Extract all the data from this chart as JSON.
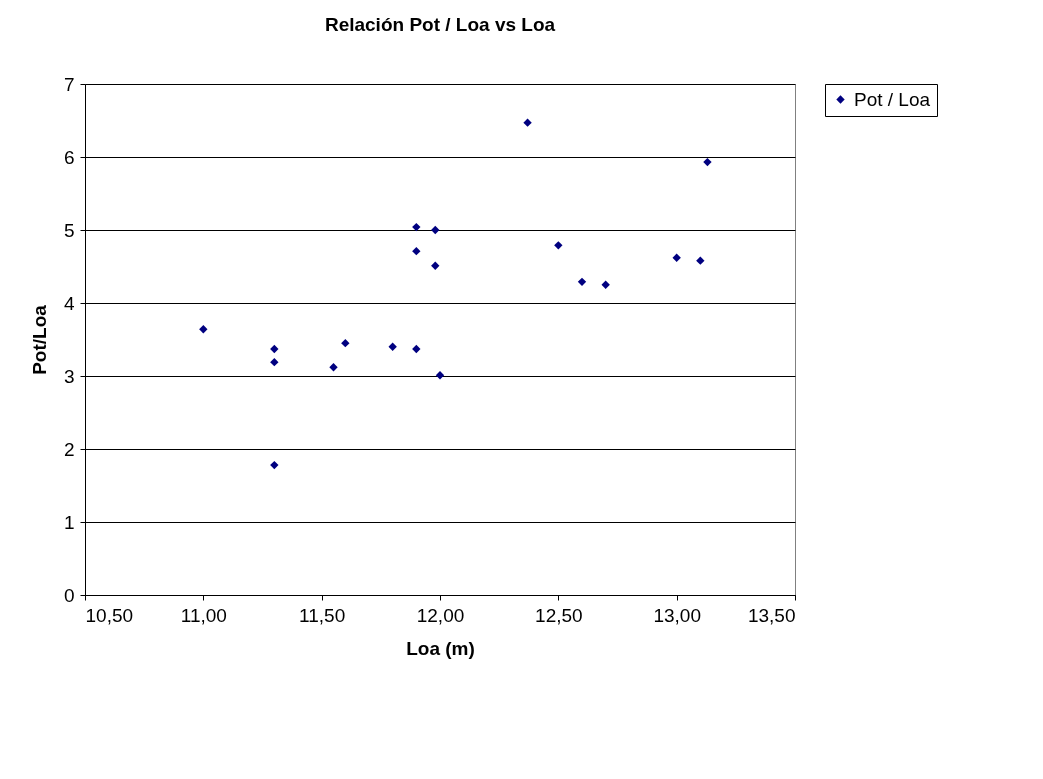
{
  "chart_data": {
    "type": "scatter",
    "title": "Relación Pot / Loa vs Loa",
    "xlabel": "Loa (m)",
    "ylabel": "Pot/Loa",
    "xlim": [
      10.5,
      13.5
    ],
    "xticks": [
      {
        "value": 10.5,
        "label": "10,50"
      },
      {
        "value": 11,
        "label": "11,00"
      },
      {
        "value": 11.5,
        "label": "11,50"
      },
      {
        "value": 12,
        "label": "12,00"
      },
      {
        "value": 12.5,
        "label": "12,50"
      },
      {
        "value": 13,
        "label": "13,00"
      },
      {
        "value": 13.5,
        "label": "13,50"
      }
    ],
    "ylim": [
      0,
      7
    ],
    "yticks": [
      0,
      1,
      2,
      3,
      4,
      5,
      6,
      7
    ],
    "grid": "y",
    "legend": "right",
    "marker": "diamond",
    "series": [
      {
        "name": "Pot / Loa",
        "color": "#000080",
        "x": [
          11.0,
          11.3,
          11.3,
          11.3,
          11.55,
          11.6,
          11.8,
          11.9,
          11.9,
          11.9,
          11.98,
          11.98,
          12.0,
          12.37,
          12.5,
          12.6,
          12.7,
          13.0,
          13.1,
          13.13
        ],
        "values": [
          3.64,
          3.37,
          3.19,
          1.78,
          3.12,
          3.45,
          3.4,
          3.37,
          5.04,
          4.71,
          5.0,
          4.51,
          3.01,
          6.47,
          4.79,
          4.29,
          4.25,
          4.62,
          4.58,
          5.93
        ]
      }
    ]
  }
}
